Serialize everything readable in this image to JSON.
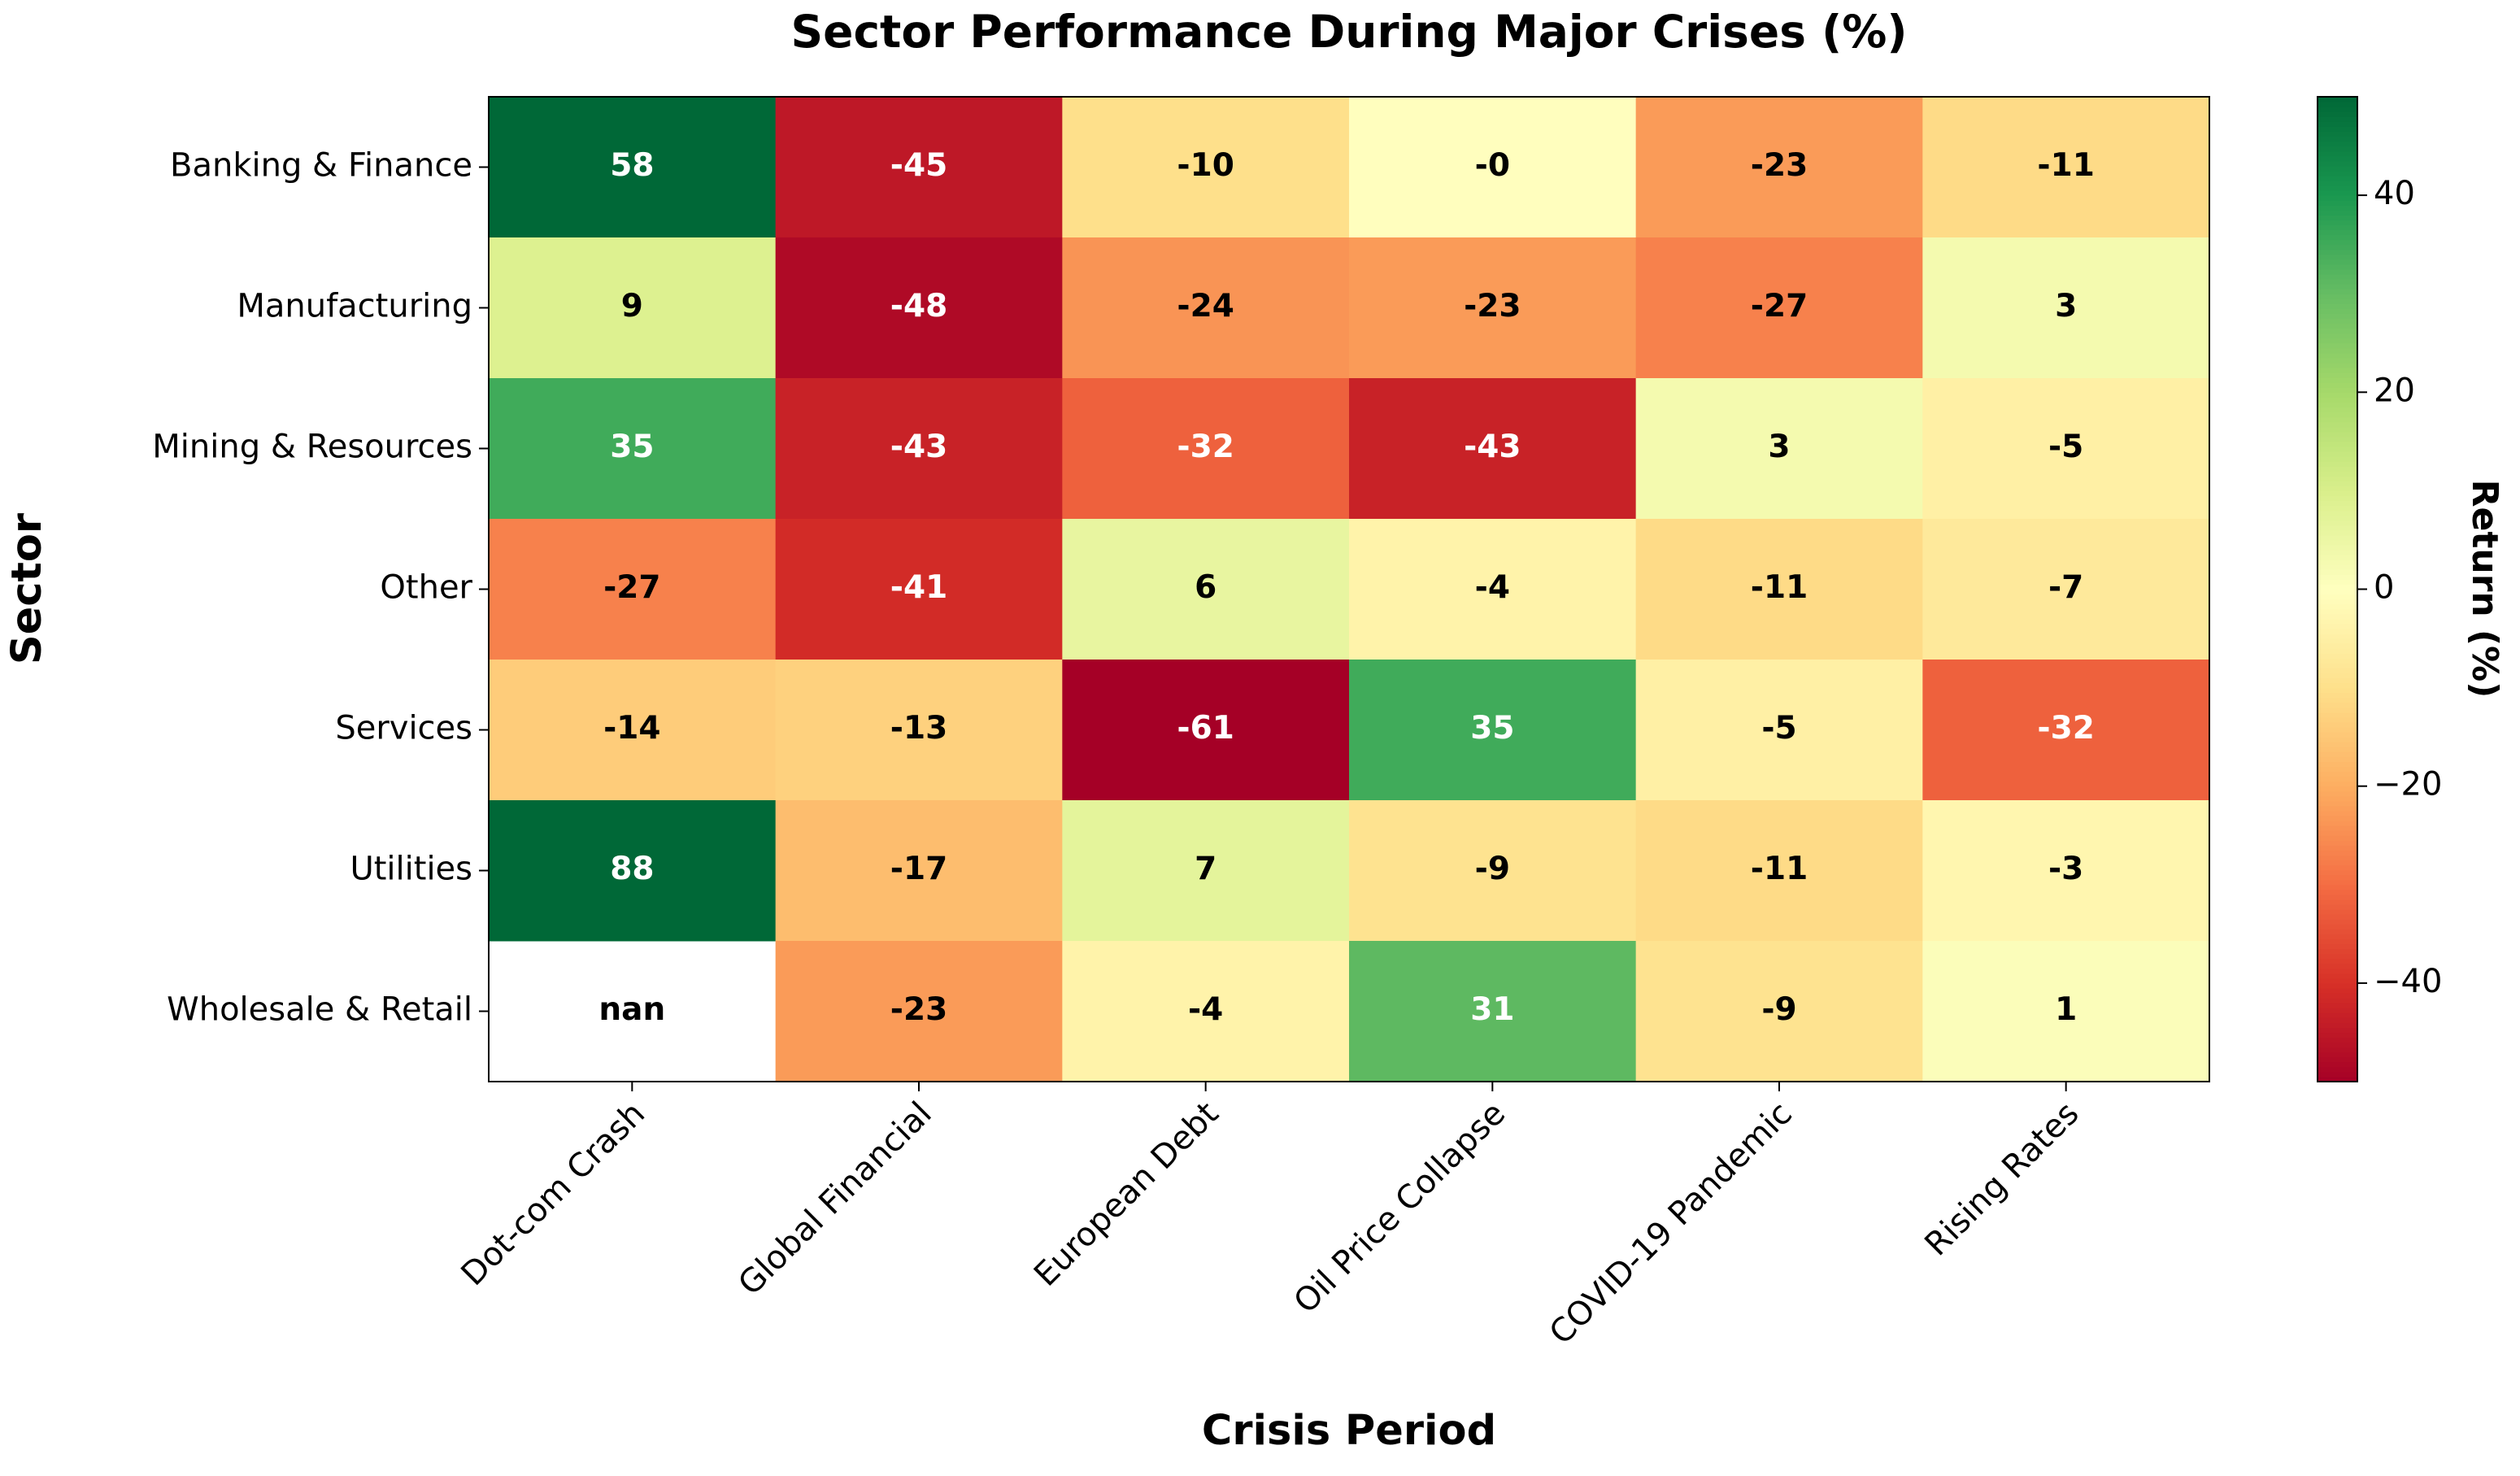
{
  "chart_data": {
    "type": "heatmap",
    "title": "Sector Performance During Major Crises (%)",
    "xlabel": "Crisis Period",
    "ylabel": "Sector",
    "categories": [
      "Dot-com Crash",
      "Global Financial",
      "European Debt",
      "Oil Price Collapse",
      "COVID-19 Pandemic",
      "Rising Rates"
    ],
    "rows": [
      "Banking & Finance",
      "Manufacturing",
      "Mining & Resources",
      "Other",
      "Services",
      "Utilities",
      "Wholesale & Retail"
    ],
    "values": [
      [
        58,
        -45,
        -10,
        -0.2,
        -23,
        -11
      ],
      [
        9,
        -48,
        -24,
        -23,
        -27,
        3
      ],
      [
        35,
        -43,
        -32,
        -43,
        3,
        -5
      ],
      [
        -27,
        -41,
        6,
        -4,
        -11,
        -7
      ],
      [
        -14,
        -13,
        -61,
        35,
        -5,
        -32
      ],
      [
        88,
        -17,
        7,
        -9,
        -11,
        -3
      ],
      [
        null,
        -23,
        -4,
        31,
        -9,
        1
      ]
    ],
    "value_labels": [
      [
        "58",
        "-45",
        "-10",
        "-0",
        "-23",
        "-11"
      ],
      [
        "9",
        "-48",
        "-24",
        "-23",
        "-27",
        "3"
      ],
      [
        "35",
        "-43",
        "-32",
        "-43",
        "3",
        "-5"
      ],
      [
        "-27",
        "-41",
        "6",
        "-4",
        "-11",
        "-7"
      ],
      [
        "-14",
        "-13",
        "-61",
        "35",
        "-5",
        "-32"
      ],
      [
        "88",
        "-17",
        "7",
        "-9",
        "-11",
        "-3"
      ],
      [
        "nan",
        "-23",
        "-4",
        "31",
        "-9",
        "1"
      ]
    ],
    "colormap": "RdYlGn",
    "clim": [
      -50,
      50
    ],
    "cticks": [
      {
        "value": -40,
        "label": "−40"
      },
      {
        "value": -20,
        "label": "−20"
      },
      0,
      20,
      40
    ],
    "colorbar_label": "Return (%)"
  }
}
